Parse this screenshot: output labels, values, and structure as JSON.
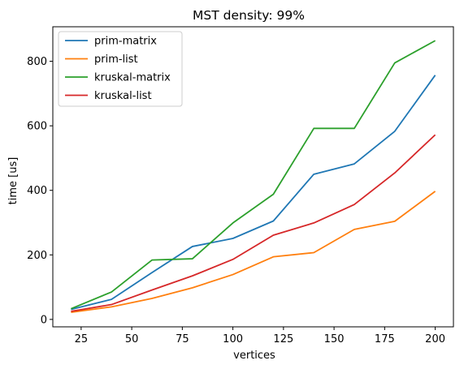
{
  "chart_data": {
    "type": "line",
    "title": "MST density: 99%",
    "xlabel": "vertices",
    "ylabel": "time [us]",
    "xlim": [
      11,
      209
    ],
    "ylim": [
      -23,
      907
    ],
    "xticks": [
      25,
      50,
      75,
      100,
      125,
      150,
      175,
      200
    ],
    "yticks": [
      0,
      200,
      400,
      600,
      800
    ],
    "legend_position": "top-left",
    "x": [
      20,
      40,
      60,
      80,
      100,
      120,
      140,
      160,
      180,
      200
    ],
    "series": [
      {
        "name": "prim-matrix",
        "color": "#1f77b4",
        "values": [
          31,
          62,
          145,
          226,
          251,
          305,
          450,
          482,
          583,
          757
        ]
      },
      {
        "name": "prim-list",
        "color": "#ff7f0e",
        "values": [
          22,
          39,
          65,
          98,
          139,
          194,
          207,
          279,
          304,
          397
        ]
      },
      {
        "name": "kruskal-matrix",
        "color": "#2ca02c",
        "values": [
          33,
          85,
          184,
          188,
          299,
          388,
          592,
          592,
          795,
          864
        ]
      },
      {
        "name": "kruskal-list",
        "color": "#d62728",
        "values": [
          25,
          46,
          91,
          135,
          186,
          261,
          299,
          356,
          454,
          572
        ]
      }
    ]
  }
}
